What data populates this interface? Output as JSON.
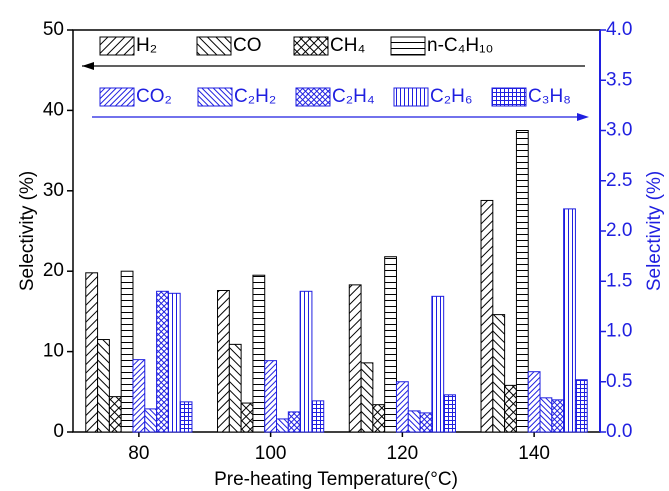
{
  "chart_data": {
    "type": "bar",
    "x_label": "Pre-heating Temperature(°C)",
    "y_label": "Selectivity (%)",
    "y2_label": "Selectivity (%)",
    "categories": [
      "80",
      "100",
      "120",
      "140"
    ],
    "ylim": [
      0,
      50
    ],
    "yticks": [
      0,
      10,
      20,
      30,
      40,
      50
    ],
    "y2lim": [
      0,
      4
    ],
    "y2ticks": [
      {
        "value": 0,
        "label": "0.0"
      },
      {
        "value": 0.5,
        "label": "0.5"
      },
      {
        "value": 1,
        "label": "1.0"
      },
      {
        "value": 1.5,
        "label": "1.5"
      },
      {
        "value": 2,
        "label": "2.0"
      },
      {
        "value": 2.5,
        "label": "2.5"
      },
      {
        "value": 3,
        "label": "3.0"
      },
      {
        "value": 3.5,
        "label": "3.5"
      },
      {
        "value": 4,
        "label": "4.0"
      }
    ],
    "y_color": "#000000",
    "y2_color": "#1f1fe0",
    "series": [
      {
        "name": "H₂",
        "color": "#000000",
        "hatch": "/",
        "values": [
          19.8,
          17.6,
          18.3,
          28.8
        ]
      },
      {
        "name": "CO",
        "color": "#000000",
        "hatch": "\\",
        "values": [
          11.5,
          10.9,
          8.6,
          14.6
        ]
      },
      {
        "name": "CH₄",
        "color": "#000000",
        "hatch": "x",
        "values": [
          4.4,
          3.6,
          3.4,
          5.8
        ]
      },
      {
        "name": "n-C₄H₁₀",
        "color": "#000000",
        "hatch": "-",
        "values": [
          20.0,
          19.5,
          21.8,
          37.5
        ]
      },
      {
        "name": "CO₂",
        "color": "#1f1fe0",
        "hatch": "/",
        "axis": "y2",
        "values": [
          0.72,
          0.71,
          0.5,
          0.6
        ]
      },
      {
        "name": "C₂H₂",
        "color": "#1f1fe0",
        "hatch": "\\",
        "axis": "y2",
        "values": [
          0.23,
          0.13,
          0.21,
          0.34
        ]
      },
      {
        "name": "C₂H₄",
        "color": "#1f1fe0",
        "hatch": "x",
        "axis": "y2",
        "values": [
          1.4,
          0.2,
          0.19,
          0.32
        ]
      },
      {
        "name": "C₂H₆",
        "color": "#1f1fe0",
        "hatch": "|",
        "axis": "y2",
        "values": [
          1.38,
          1.4,
          1.35,
          2.22
        ]
      },
      {
        "name": "C₃H₈",
        "color": "#1f1fe0",
        "hatch": "+",
        "axis": "y2",
        "values": [
          0.3,
          0.31,
          0.37,
          0.52
        ]
      }
    ]
  }
}
